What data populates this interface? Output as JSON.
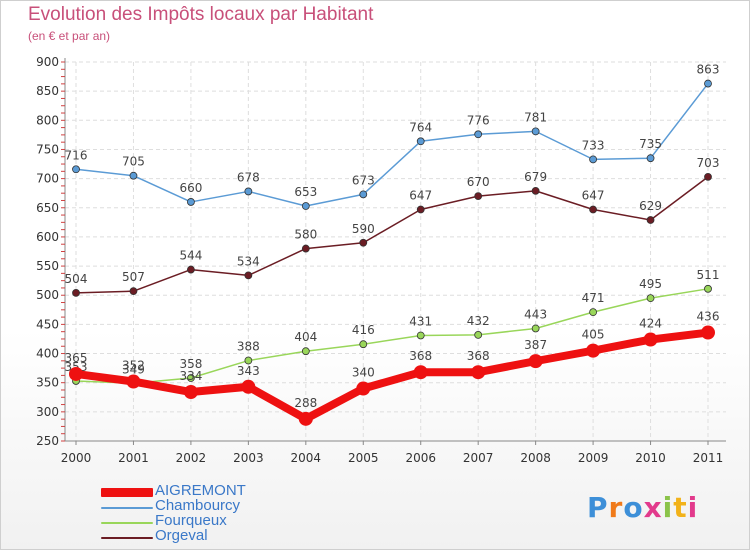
{
  "chart_data": {
    "type": "line",
    "title": "Evolution des Impôts locaux par Habitant",
    "subtitle": "(en € et par an)",
    "categories": [
      "2000",
      "2001",
      "2002",
      "2003",
      "2004",
      "2005",
      "2006",
      "2007",
      "2008",
      "2009",
      "2010",
      "2011"
    ],
    "ylim": [
      250,
      900
    ],
    "yticks": [
      250,
      300,
      350,
      400,
      450,
      500,
      550,
      600,
      650,
      700,
      750,
      800,
      850,
      900
    ],
    "grid": true,
    "legend_position": "bottom-left",
    "series": [
      {
        "name": "Chambourcy",
        "color": "#5b9bd5",
        "values": [
          716,
          705,
          660,
          678,
          653,
          673,
          764,
          776,
          781,
          733,
          735,
          863
        ]
      },
      {
        "name": "Orgeval",
        "color": "#6b1d24",
        "values": [
          504,
          507,
          544,
          534,
          580,
          590,
          647,
          670,
          679,
          647,
          629,
          703
        ]
      },
      {
        "name": "Fourqueux",
        "color": "#99d65a",
        "values": [
          353,
          349,
          358,
          388,
          404,
          416,
          431,
          432,
          443,
          471,
          495,
          511
        ]
      },
      {
        "name": "AIGREMONT",
        "color": "#ee1111",
        "values": [
          365,
          352,
          334,
          343,
          288,
          340,
          368,
          368,
          387,
          405,
          424,
          436
        ]
      }
    ],
    "legend": [
      {
        "name": "AIGREMONT",
        "color": "#ee1111"
      },
      {
        "name": "Chambourcy",
        "color": "#5b9bd5"
      },
      {
        "name": "Fourqueux",
        "color": "#99d65a"
      },
      {
        "name": "Orgeval",
        "color": "#6b1d24"
      }
    ]
  },
  "brand": {
    "text": "Proxiti",
    "letter_colors": [
      "#3d8fd8",
      "#f07a1a",
      "#3d8fd8",
      "#e23a8c",
      "#8bc34a",
      "#f2b21a",
      "#e23a8c"
    ]
  }
}
